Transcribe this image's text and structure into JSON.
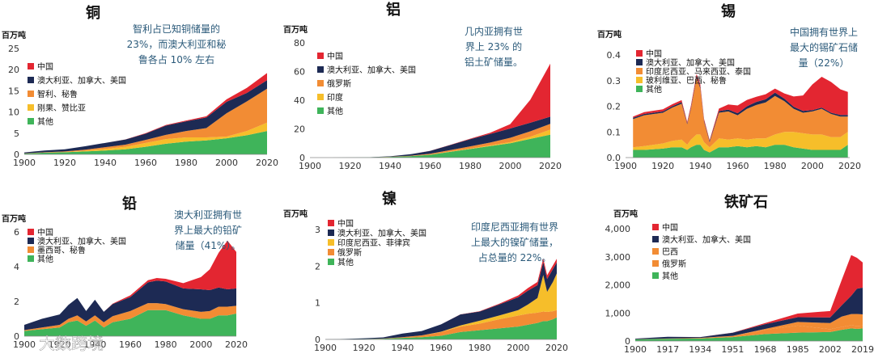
{
  "watermark": "大数跨境",
  "colors": {
    "中国": "#e32631",
    "澳大利亚、加拿大、美国": "#1d2a54",
    "智利、秘鲁": "#f28c34",
    "刚果、赞比亚": "#f6be2a",
    "俄罗斯": "#f28c34",
    "印度": "#f6be2a",
    "印度尼西亚、马来西亚、泰国": "#f28c34",
    "玻利维亚、巴西、秘鲁": "#f6be2a",
    "墨西哥、秘鲁": "#f28c34",
    "印度尼西亚、菲律宾": "#f6be2a",
    "巴西": "#f28c34",
    "其他": "#3fb45a"
  },
  "chart_data": [
    {
      "type": "area",
      "title": "铜",
      "ylabel": "百万吨",
      "annotation": [
        "智利占已知铜储量的",
        "23%，而澳大利亚和秘",
        "鲁各占 10% 左右"
      ],
      "xlim": [
        1900,
        2020
      ],
      "ylim": [
        0,
        25
      ],
      "xticks": [
        "1900",
        "1920",
        "1940",
        "1960",
        "1980",
        "2000",
        "2020"
      ],
      "yticks": [
        "0",
        "5",
        "10",
        "15",
        "20",
        "25"
      ],
      "x": [
        1900,
        1910,
        1920,
        1930,
        1940,
        1950,
        1960,
        1970,
        1980,
        1990,
        2000,
        2010,
        2020
      ],
      "series": [
        {
          "name": "其他",
          "values": [
            0.2,
            0.4,
            0.5,
            0.7,
            0.9,
            1.2,
            1.8,
            2.5,
            3.0,
            3.3,
            3.8,
            4.5,
            5.5
          ]
        },
        {
          "name": "刚果、赞比亚",
          "values": [
            0.0,
            0.0,
            0.05,
            0.15,
            0.4,
            0.6,
            0.9,
            1.1,
            1.0,
            0.7,
            0.4,
            1.0,
            2.0
          ]
        },
        {
          "name": "智利、秘鲁",
          "values": [
            0.05,
            0.1,
            0.15,
            0.25,
            0.4,
            0.5,
            0.7,
            1.0,
            1.5,
            2.2,
            5.5,
            7.0,
            8.0
          ]
        },
        {
          "name": "澳大利亚、加拿大、美国",
          "values": [
            0.2,
            0.4,
            0.5,
            0.8,
            1.0,
            1.2,
            1.5,
            2.2,
            2.3,
            2.5,
            2.7,
            2.0,
            2.0
          ]
        },
        {
          "name": "中国",
          "values": [
            0.0,
            0.0,
            0.0,
            0.0,
            0.0,
            0.02,
            0.1,
            0.15,
            0.2,
            0.3,
            0.6,
            1.2,
            1.7
          ]
        }
      ]
    },
    {
      "type": "area",
      "title": "铝",
      "ylabel": "百万吨",
      "annotation": [
        "几内亚拥有世",
        "界上 23% 的",
        "铝土矿储量。"
      ],
      "xlim": [
        1900,
        2020
      ],
      "ylim": [
        0,
        80
      ],
      "xticks": [
        "1900",
        "1920",
        "1940",
        "1960",
        "1980",
        "2000",
        "2020"
      ],
      "yticks": [
        "0",
        "20",
        "40",
        "60",
        "80"
      ],
      "x": [
        1900,
        1910,
        1920,
        1930,
        1940,
        1950,
        1960,
        1970,
        1980,
        1990,
        2000,
        2010,
        2020
      ],
      "series": [
        {
          "name": "其他",
          "values": [
            0.0,
            0.0,
            0.1,
            0.2,
            0.5,
            1.0,
            2.0,
            4.0,
            6.0,
            8.0,
            10.0,
            13.0,
            16.0
          ]
        },
        {
          "name": "印度",
          "values": [
            0.0,
            0.0,
            0.0,
            0.0,
            0.0,
            0.0,
            0.05,
            0.2,
            0.3,
            0.5,
            0.8,
            1.5,
            3.5
          ]
        },
        {
          "name": "俄罗斯",
          "values": [
            0.0,
            0.0,
            0.0,
            0.0,
            0.1,
            0.3,
            0.6,
            1.0,
            1.5,
            2.0,
            3.0,
            3.8,
            4.0
          ]
        },
        {
          "name": "澳大利亚、加拿大、美国",
          "values": [
            0.0,
            0.0,
            0.05,
            0.1,
            0.3,
            1.0,
            2.0,
            3.5,
            5.0,
            6.0,
            6.5,
            6.0,
            5.0
          ]
        },
        {
          "name": "中国",
          "values": [
            0.0,
            0.0,
            0.0,
            0.0,
            0.0,
            0.0,
            0.1,
            0.2,
            0.4,
            0.8,
            3.0,
            16.0,
            37.0
          ]
        }
      ]
    },
    {
      "type": "area",
      "title": "锡",
      "ylabel": "百万吨",
      "annotation": [
        "中国拥有世界上",
        "最大的锡矿石储",
        "量（22%）"
      ],
      "xlim": [
        1900,
        2020
      ],
      "ylim": [
        0,
        0.4
      ],
      "xticks": [
        "1900",
        "1920",
        "1940",
        "1960",
        "1980",
        "2000",
        "2020"
      ],
      "yticks": [
        "0.0",
        "0.1",
        "0.2",
        "0.3",
        "0.4"
      ],
      "x": [
        1904,
        1910,
        1920,
        1925,
        1930,
        1933,
        1935,
        1938,
        1940,
        1942,
        1945,
        1950,
        1955,
        1960,
        1965,
        1970,
        1975,
        1980,
        1985,
        1990,
        1995,
        2000,
        2005,
        2010,
        2015,
        2019
      ],
      "series": [
        {
          "name": "其他",
          "values": [
            0.03,
            0.03,
            0.035,
            0.04,
            0.04,
            0.03,
            0.04,
            0.05,
            0.05,
            0.03,
            0.02,
            0.04,
            0.04,
            0.045,
            0.04,
            0.045,
            0.04,
            0.05,
            0.05,
            0.04,
            0.035,
            0.03,
            0.03,
            0.03,
            0.03,
            0.05
          ]
        },
        {
          "name": "玻利维亚、巴西、秘鲁",
          "values": [
            0.01,
            0.015,
            0.02,
            0.025,
            0.03,
            0.02,
            0.03,
            0.04,
            0.04,
            0.03,
            0.02,
            0.035,
            0.03,
            0.03,
            0.03,
            0.03,
            0.035,
            0.04,
            0.05,
            0.06,
            0.06,
            0.06,
            0.06,
            0.05,
            0.05,
            0.05
          ]
        },
        {
          "name": "印度尼西亚、马来西亚、泰国",
          "values": [
            0.11,
            0.12,
            0.12,
            0.13,
            0.14,
            0.08,
            0.12,
            0.22,
            0.18,
            0.08,
            0.02,
            0.1,
            0.11,
            0.09,
            0.12,
            0.13,
            0.14,
            0.15,
            0.12,
            0.09,
            0.08,
            0.09,
            0.1,
            0.09,
            0.08,
            0.06
          ]
        },
        {
          "name": "澳大利亚、加拿大、美国",
          "values": [
            0.005,
            0.005,
            0.005,
            0.005,
            0.006,
            0.004,
            0.005,
            0.006,
            0.006,
            0.005,
            0.004,
            0.006,
            0.007,
            0.008,
            0.01,
            0.012,
            0.012,
            0.013,
            0.01,
            0.008,
            0.007,
            0.005,
            0.005,
            0.005,
            0.006,
            0.006
          ]
        },
        {
          "name": "中国",
          "values": [
            0.005,
            0.007,
            0.008,
            0.008,
            0.008,
            0.005,
            0.008,
            0.01,
            0.01,
            0.006,
            0.004,
            0.01,
            0.02,
            0.03,
            0.025,
            0.02,
            0.02,
            0.016,
            0.02,
            0.04,
            0.06,
            0.1,
            0.12,
            0.12,
            0.1,
            0.09
          ]
        }
      ]
    },
    {
      "type": "area",
      "title": "铅",
      "ylabel": "百万吨",
      "annotation": [
        "澳大利亚拥有世",
        "界上最大的铅矿",
        "储量（41%）。"
      ],
      "xlim": [
        1900,
        2020
      ],
      "ylim": [
        0,
        6
      ],
      "xticks": [
        "1900",
        "1920",
        "1940",
        "1960",
        "1980",
        "2000",
        "2020"
      ],
      "yticks": [
        "0",
        "2",
        "4",
        "6"
      ],
      "x": [
        1900,
        1910,
        1920,
        1925,
        1930,
        1935,
        1940,
        1945,
        1950,
        1960,
        1970,
        1975,
        1980,
        1990,
        2000,
        2005,
        2010,
        2015,
        2020
      ],
      "series": [
        {
          "name": "其他",
          "values": [
            0.3,
            0.4,
            0.5,
            0.8,
            0.9,
            0.6,
            0.9,
            0.5,
            0.8,
            1.0,
            1.5,
            1.5,
            1.5,
            1.2,
            1.0,
            1.0,
            1.2,
            1.2,
            1.3
          ]
        },
        {
          "name": "墨西哥、秘鲁",
          "values": [
            0.05,
            0.1,
            0.15,
            0.2,
            0.3,
            0.25,
            0.3,
            0.3,
            0.35,
            0.45,
            0.4,
            0.4,
            0.35,
            0.35,
            0.4,
            0.45,
            0.5,
            0.5,
            0.45
          ]
        },
        {
          "name": "澳大利亚、加拿大、美国",
          "values": [
            0.3,
            0.5,
            0.6,
            0.8,
            1.0,
            0.6,
            0.9,
            0.6,
            0.7,
            0.8,
            1.2,
            1.3,
            1.3,
            1.2,
            1.3,
            1.2,
            1.1,
            1.0,
            1.0
          ]
        },
        {
          "name": "中国",
          "values": [
            0.0,
            0.0,
            0.0,
            0.0,
            0.0,
            0.0,
            0.0,
            0.0,
            0.02,
            0.1,
            0.12,
            0.15,
            0.15,
            0.3,
            0.7,
            1.2,
            2.0,
            2.8,
            2.1
          ]
        }
      ]
    },
    {
      "type": "area",
      "title": "镍",
      "ylabel": "百万吨",
      "annotation": [
        "印度尼西亚拥有世界",
        "上最大的镍矿储量，",
        "占总量的 22%。"
      ],
      "xlim": [
        1900,
        2020
      ],
      "ylim": [
        0,
        3
      ],
      "xticks": [
        "1900",
        "1920",
        "1940",
        "1960",
        "1980",
        "2000",
        "2020"
      ],
      "yticks": [
        "0",
        "1",
        "2",
        "3"
      ],
      "x": [
        1900,
        1910,
        1920,
        1930,
        1940,
        1950,
        1960,
        1970,
        1980,
        1990,
        2000,
        2005,
        2010,
        2013,
        2015,
        2018,
        2020
      ],
      "series": [
        {
          "name": "其他",
          "values": [
            0.0,
            0.005,
            0.01,
            0.02,
            0.04,
            0.06,
            0.1,
            0.2,
            0.25,
            0.3,
            0.35,
            0.4,
            0.45,
            0.5,
            0.5,
            0.55,
            0.6
          ]
        },
        {
          "name": "俄罗斯",
          "values": [
            0.0,
            0.0,
            0.0,
            0.005,
            0.02,
            0.05,
            0.1,
            0.15,
            0.18,
            0.25,
            0.3,
            0.3,
            0.28,
            0.26,
            0.25,
            0.22,
            0.2
          ]
        },
        {
          "name": "印度尼西亚、菲律宾",
          "values": [
            0.0,
            0.0,
            0.0,
            0.0,
            0.0,
            0.0,
            0.01,
            0.03,
            0.08,
            0.1,
            0.15,
            0.25,
            0.4,
            1.0,
            0.55,
            0.8,
            1.0
          ]
        },
        {
          "name": "澳大利亚、加拿大、美国",
          "values": [
            0.002,
            0.01,
            0.02,
            0.03,
            0.1,
            0.12,
            0.2,
            0.3,
            0.25,
            0.3,
            0.35,
            0.38,
            0.35,
            0.35,
            0.35,
            0.35,
            0.3
          ]
        },
        {
          "name": "中国",
          "values": [
            0.0,
            0.0,
            0.0,
            0.0,
            0.0,
            0.0,
            0.0,
            0.005,
            0.01,
            0.02,
            0.05,
            0.07,
            0.09,
            0.1,
            0.1,
            0.1,
            0.1
          ]
        }
      ]
    },
    {
      "type": "area",
      "title": "铁矿石",
      "ylabel": "百万吨",
      "xlim": [
        1900,
        2019
      ],
      "ylim": [
        0,
        4000
      ],
      "xticks": [
        "1900",
        "1917",
        "1934",
        "1951",
        "1968",
        "1985",
        "2002",
        "2019"
      ],
      "yticks": [
        "0",
        "1,000",
        "2,000",
        "3,000",
        "4,000"
      ],
      "x": [
        1900,
        1917,
        1934,
        1951,
        1968,
        1985,
        2002,
        2008,
        2013,
        2016,
        2019
      ],
      "series": [
        {
          "name": "其他",
          "values": [
            60,
            80,
            90,
            140,
            250,
            300,
            320,
            400,
            450,
            430,
            450
          ]
        },
        {
          "name": "俄罗斯",
          "values": [
            5,
            10,
            20,
            40,
            150,
            250,
            100,
            100,
            110,
            105,
            100
          ]
        },
        {
          "name": "巴西",
          "values": [
            0,
            0,
            2,
            5,
            30,
            130,
            220,
            370,
            400,
            430,
            400
          ]
        },
        {
          "name": "澳大利亚、加拿大、美国",
          "values": [
            20,
            60,
            30,
            110,
            170,
            170,
            200,
            400,
            650,
            900,
            950
          ]
        },
        {
          "name": "中国",
          "values": [
            0,
            0,
            0,
            5,
            40,
            130,
            230,
            900,
            1450,
            1100,
            900
          ]
        }
      ]
    }
  ]
}
